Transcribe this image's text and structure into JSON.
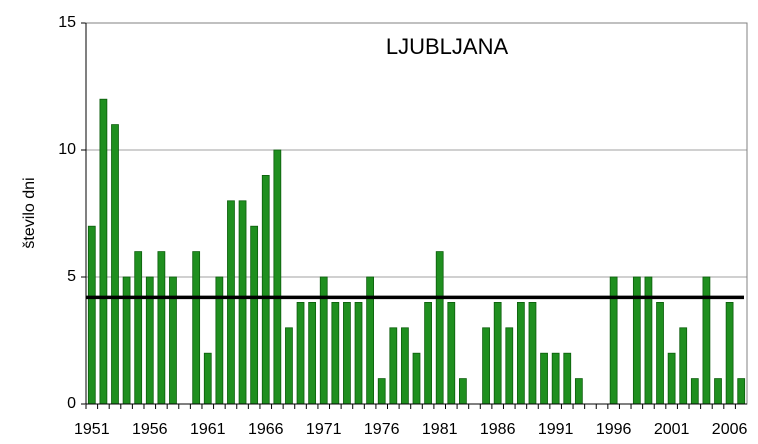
{
  "chart_data": {
    "type": "bar",
    "title": "LJUBLJANA",
    "y_label": "število dni",
    "categories": [
      "1951",
      null,
      null,
      null,
      null,
      "1956",
      null,
      null,
      null,
      null,
      "1961",
      null,
      null,
      null,
      null,
      "1966",
      null,
      null,
      null,
      null,
      "1971",
      null,
      null,
      null,
      null,
      "1976",
      null,
      null,
      null,
      null,
      "1981",
      null,
      null,
      null,
      null,
      "1986",
      null,
      null,
      null,
      null,
      "1991",
      null,
      null,
      null,
      null,
      "1996",
      null,
      null,
      null,
      null,
      "2001",
      null,
      null,
      null,
      null,
      "2006",
      null
    ],
    "values": [
      7,
      12,
      11,
      5,
      6,
      5,
      6,
      5,
      0,
      6,
      2,
      5,
      8,
      8,
      7,
      9,
      10,
      3,
      4,
      4,
      5,
      4,
      4,
      4,
      5,
      1,
      3,
      3,
      2,
      4,
      6,
      4,
      1,
      0,
      3,
      4,
      3,
      4,
      4,
      2,
      2,
      2,
      1,
      0,
      0,
      5,
      0,
      5,
      5,
      4,
      2,
      3,
      1,
      5,
      1,
      4,
      1
    ],
    "color": "#1f8f1f",
    "reference_line": 4.2,
    "reference_color": "#000000",
    "ylim": [
      0,
      15
    ],
    "yticks": [
      0,
      5,
      10,
      15
    ],
    "grid": true
  }
}
